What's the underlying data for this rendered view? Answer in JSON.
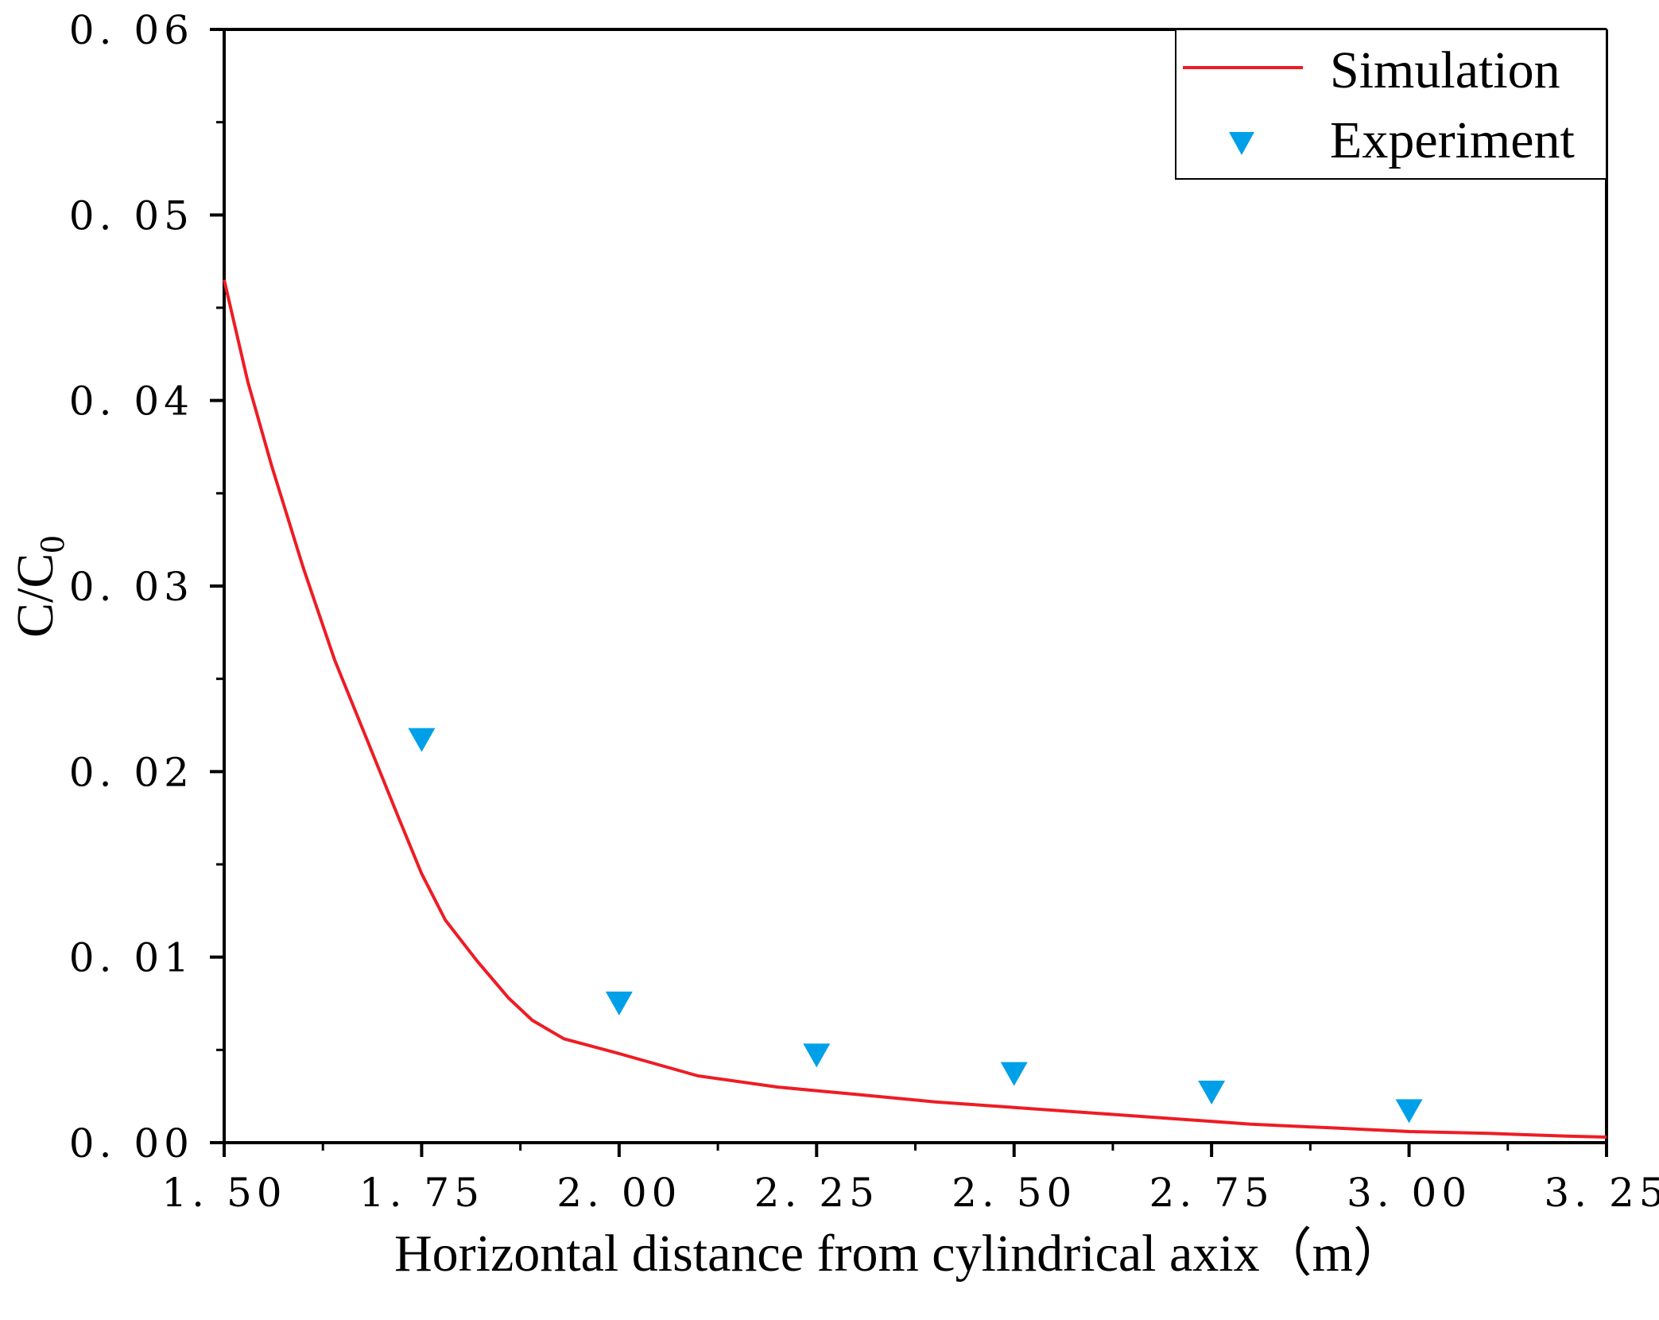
{
  "chart_data": {
    "type": "line",
    "title": "",
    "xlabel": "Horizontal distance from cylindrical axix（m）",
    "ylabel": {
      "main": "C/C",
      "subscript": "0"
    },
    "xlim": [
      1.5,
      3.25
    ],
    "ylim": [
      0.0,
      0.06
    ],
    "x_ticks": [
      1.5,
      1.75,
      2.0,
      2.25,
      2.5,
      2.75,
      3.0,
      3.25
    ],
    "x_tick_labels": [
      "1. 50",
      "1. 75",
      "2. 00",
      "2. 25",
      "2. 50",
      "2. 75",
      "3. 00",
      "3. 25"
    ],
    "y_ticks": [
      0.0,
      0.01,
      0.02,
      0.03,
      0.04,
      0.05,
      0.06
    ],
    "y_tick_labels": [
      "0. 00",
      "0. 01",
      "0. 02",
      "0. 03",
      "0. 04",
      "0. 05",
      "0. 06"
    ],
    "grid": false,
    "legend_position": "top-right",
    "series": [
      {
        "name": "Simulation",
        "kind": "line",
        "color": "#ee1c24",
        "x": [
          1.5,
          1.53,
          1.56,
          1.6,
          1.64,
          1.68,
          1.72,
          1.75,
          1.78,
          1.82,
          1.86,
          1.89,
          1.93,
          2.0,
          2.05,
          2.1,
          2.2,
          2.3,
          2.4,
          2.5,
          2.6,
          2.7,
          2.8,
          2.9,
          3.0,
          3.1,
          3.2,
          3.25
        ],
        "y": [
          0.0465,
          0.041,
          0.0365,
          0.031,
          0.026,
          0.0218,
          0.0176,
          0.0145,
          0.012,
          0.0098,
          0.0078,
          0.0066,
          0.0056,
          0.0048,
          0.0042,
          0.0036,
          0.003,
          0.0026,
          0.0022,
          0.0019,
          0.0016,
          0.0013,
          0.001,
          0.0008,
          0.0006,
          0.0005,
          0.00035,
          0.0003
        ]
      },
      {
        "name": "Experiment",
        "kind": "scatter",
        "marker": "triangle-down",
        "color": "#00a0e9",
        "x": [
          1.75,
          2.0,
          2.25,
          2.5,
          2.75,
          3.0
        ],
        "y": [
          0.0217,
          0.0075,
          0.0047,
          0.0037,
          0.0027,
          0.0017
        ]
      }
    ]
  }
}
